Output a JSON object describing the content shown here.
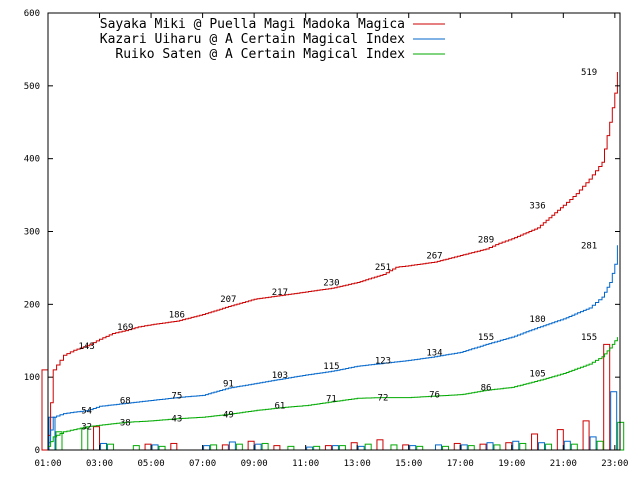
{
  "chart_data": {
    "type": "line",
    "xlim_hours": [
      1,
      23.2
    ],
    "ylim": [
      0,
      600
    ],
    "y_ticks": [
      0,
      100,
      200,
      300,
      400,
      500,
      600
    ],
    "x_ticks": [
      "01:00",
      "03:00",
      "05:00",
      "07:00",
      "09:00",
      "11:00",
      "13:00",
      "15:00",
      "17:00",
      "19:00",
      "21:00",
      "23:00"
    ],
    "x_tick_hours": [
      1,
      3,
      5,
      7,
      9,
      11,
      13,
      15,
      17,
      19,
      21,
      23
    ],
    "legend_position": "top-left",
    "series": [
      {
        "name": "Sayaka Miki @ Puella Magi Madoka Magica",
        "color": "#cc0000",
        "cumulative": [
          [
            1.0,
            20
          ],
          [
            1.2,
            110
          ],
          [
            1.6,
            130
          ],
          [
            2.0,
            137
          ],
          [
            2.5,
            143
          ],
          [
            3.0,
            152
          ],
          [
            3.5,
            160
          ],
          [
            4.0,
            164
          ],
          [
            4.5,
            169
          ],
          [
            5.0,
            172
          ],
          [
            6.0,
            177
          ],
          [
            7.0,
            186
          ],
          [
            8.0,
            197
          ],
          [
            9.0,
            207
          ],
          [
            10.0,
            212
          ],
          [
            11.0,
            217
          ],
          [
            12.0,
            222
          ],
          [
            13.0,
            230
          ],
          [
            14.0,
            241
          ],
          [
            14.5,
            251
          ],
          [
            15.0,
            253
          ],
          [
            16.0,
            258
          ],
          [
            17.0,
            267
          ],
          [
            18.0,
            276
          ],
          [
            18.5,
            284
          ],
          [
            19.0,
            290
          ],
          [
            20.0,
            305
          ],
          [
            21.0,
            336
          ],
          [
            21.5,
            352
          ],
          [
            22.0,
            372
          ],
          [
            22.5,
            395
          ],
          [
            22.8,
            450
          ],
          [
            23.0,
            490
          ],
          [
            23.1,
            519
          ]
        ],
        "labels": [
          [
            2.5,
            143,
            "143"
          ],
          [
            4.0,
            169,
            "169"
          ],
          [
            6.0,
            186,
            "186"
          ],
          [
            8.0,
            207,
            "207"
          ],
          [
            10.0,
            217,
            "217"
          ],
          [
            12.0,
            230,
            "230"
          ],
          [
            14.0,
            251,
            "251"
          ],
          [
            16.0,
            267,
            "267"
          ],
          [
            18.0,
            289,
            "289"
          ],
          [
            20.0,
            336,
            "336"
          ],
          [
            22.0,
            519,
            "519"
          ]
        ],
        "bars": [
          [
            1,
            110
          ],
          [
            3,
            32
          ],
          [
            5,
            8
          ],
          [
            6,
            9
          ],
          [
            8,
            7
          ],
          [
            9,
            12
          ],
          [
            10,
            6
          ],
          [
            12,
            6
          ],
          [
            13,
            10
          ],
          [
            14,
            14
          ],
          [
            15,
            7
          ],
          [
            17,
            9
          ],
          [
            18,
            8
          ],
          [
            19,
            10
          ],
          [
            20,
            22
          ],
          [
            21,
            28
          ],
          [
            22,
            40
          ],
          [
            22.8,
            145
          ]
        ]
      },
      {
        "name": "Kazari Uiharu @ A Certain Magical Index",
        "color": "#0066cc",
        "cumulative": [
          [
            1.0,
            10
          ],
          [
            1.2,
            45
          ],
          [
            1.6,
            50
          ],
          [
            2.0,
            52
          ],
          [
            2.5,
            54
          ],
          [
            3.0,
            60
          ],
          [
            4.0,
            64
          ],
          [
            5.0,
            68
          ],
          [
            6.0,
            72
          ],
          [
            7.0,
            75
          ],
          [
            8.0,
            85
          ],
          [
            9.0,
            91
          ],
          [
            10.0,
            97
          ],
          [
            11.0,
            103
          ],
          [
            12.0,
            108
          ],
          [
            13.0,
            115
          ],
          [
            14.0,
            119
          ],
          [
            15.0,
            123
          ],
          [
            16.0,
            128
          ],
          [
            17.0,
            134
          ],
          [
            18.0,
            145
          ],
          [
            19.0,
            155
          ],
          [
            20.0,
            168
          ],
          [
            21.0,
            180
          ],
          [
            22.0,
            195
          ],
          [
            22.5,
            210
          ],
          [
            22.8,
            230
          ],
          [
            23.0,
            255
          ],
          [
            23.1,
            281
          ]
        ],
        "labels": [
          [
            2.5,
            54,
            "54"
          ],
          [
            4.0,
            68,
            "68"
          ],
          [
            6.0,
            75,
            "75"
          ],
          [
            8.0,
            91,
            "91"
          ],
          [
            10.0,
            103,
            "103"
          ],
          [
            12.0,
            115,
            "115"
          ],
          [
            14.0,
            123,
            "123"
          ],
          [
            16.0,
            134,
            "134"
          ],
          [
            18.0,
            155,
            "155"
          ],
          [
            20.0,
            180,
            "180"
          ],
          [
            22.0,
            281,
            "281"
          ]
        ],
        "bars": [
          [
            1,
            45
          ],
          [
            3,
            9
          ],
          [
            5,
            7
          ],
          [
            7,
            6
          ],
          [
            8,
            11
          ],
          [
            9,
            8
          ],
          [
            11,
            4
          ],
          [
            12,
            6
          ],
          [
            13,
            5
          ],
          [
            15,
            6
          ],
          [
            16,
            7
          ],
          [
            17,
            7
          ],
          [
            18,
            10
          ],
          [
            19,
            12
          ],
          [
            20,
            10
          ],
          [
            21,
            12
          ],
          [
            22,
            18
          ],
          [
            22.8,
            80
          ]
        ]
      },
      {
        "name": "Ruiko Saten @ A Certain Magical Index",
        "color": "#00aa00",
        "cumulative": [
          [
            1.0,
            5
          ],
          [
            1.2,
            18
          ],
          [
            1.6,
            25
          ],
          [
            2.0,
            28
          ],
          [
            2.5,
            32
          ],
          [
            3.0,
            34
          ],
          [
            4.0,
            38
          ],
          [
            5.0,
            40
          ],
          [
            6.0,
            43
          ],
          [
            7.0,
            45
          ],
          [
            8.0,
            49
          ],
          [
            9.0,
            54
          ],
          [
            10.0,
            58
          ],
          [
            11.0,
            61
          ],
          [
            12.0,
            66
          ],
          [
            13.0,
            71
          ],
          [
            14.0,
            72
          ],
          [
            15.0,
            72
          ],
          [
            16.0,
            74
          ],
          [
            17.0,
            76
          ],
          [
            18.0,
            82
          ],
          [
            19.0,
            86
          ],
          [
            20.0,
            95
          ],
          [
            21.0,
            105
          ],
          [
            22.0,
            118
          ],
          [
            22.5,
            128
          ],
          [
            22.8,
            140
          ],
          [
            23.1,
            155
          ]
        ],
        "labels": [
          [
            2.5,
            32,
            "32"
          ],
          [
            4.0,
            38,
            "38"
          ],
          [
            6.0,
            43,
            "43"
          ],
          [
            8.0,
            49,
            "49"
          ],
          [
            10.0,
            61,
            "61"
          ],
          [
            12.0,
            71,
            "71"
          ],
          [
            14.0,
            72,
            "72"
          ],
          [
            16.0,
            76,
            "76"
          ],
          [
            18.0,
            86,
            "86"
          ],
          [
            20.0,
            105,
            "105"
          ],
          [
            22.0,
            155,
            "155"
          ]
        ],
        "bars": [
          [
            1,
            25
          ],
          [
            2,
            30
          ],
          [
            3,
            8
          ],
          [
            4,
            6
          ],
          [
            5,
            5
          ],
          [
            7,
            7
          ],
          [
            8,
            8
          ],
          [
            9,
            9
          ],
          [
            10,
            5
          ],
          [
            11,
            5
          ],
          [
            12,
            6
          ],
          [
            13,
            8
          ],
          [
            14,
            7
          ],
          [
            15,
            5
          ],
          [
            16,
            5
          ],
          [
            17,
            6
          ],
          [
            18,
            7
          ],
          [
            19,
            9
          ],
          [
            20,
            8
          ],
          [
            21,
            8
          ],
          [
            22,
            12
          ],
          [
            22.8,
            38
          ]
        ]
      }
    ]
  }
}
